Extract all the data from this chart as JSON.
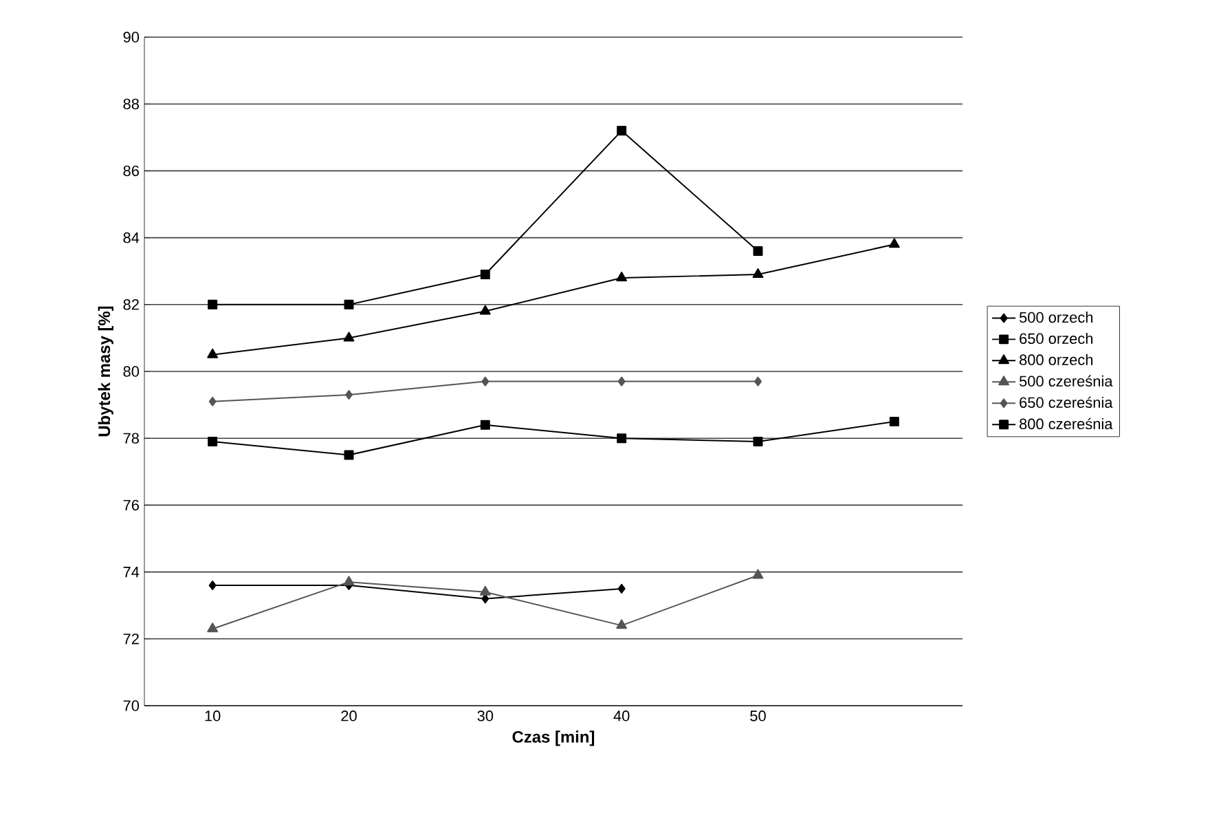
{
  "chart_data": {
    "type": "line",
    "xlabel": "Czas [min]",
    "ylabel": "Ubytek masy [%]",
    "categories": [
      "10",
      "20",
      "30",
      "40",
      "50",
      null
    ],
    "ylim": [
      70,
      90
    ],
    "yticks": [
      70,
      72,
      74,
      76,
      78,
      80,
      82,
      84,
      86,
      88,
      90
    ],
    "grid": "y",
    "legend": "right",
    "series": [
      {
        "name": "500 orzech",
        "color": "#000000",
        "marker": "diamond",
        "values": [
          73.6,
          73.6,
          73.2,
          73.5,
          null,
          null
        ]
      },
      {
        "name": "650 orzech",
        "color": "#000000",
        "marker": "square",
        "values": [
          77.9,
          77.5,
          78.4,
          78.0,
          77.9,
          78.5
        ]
      },
      {
        "name": "800 orzech",
        "color": "#000000",
        "marker": "triangle",
        "values": [
          80.5,
          81.0,
          81.8,
          82.8,
          82.9,
          83.8
        ]
      },
      {
        "name": "500 czereśnia",
        "color": "#555555",
        "marker": "triangle",
        "values": [
          72.3,
          73.7,
          73.4,
          72.4,
          73.9,
          null
        ]
      },
      {
        "name": "650 czereśnia",
        "color": "#555555",
        "marker": "diamond",
        "values": [
          79.1,
          79.3,
          79.7,
          79.7,
          79.7,
          null
        ]
      },
      {
        "name": "800 czereśnia",
        "color": "#000000",
        "marker": "square",
        "values": [
          82.0,
          82.0,
          82.9,
          87.2,
          83.6,
          null
        ]
      }
    ]
  }
}
